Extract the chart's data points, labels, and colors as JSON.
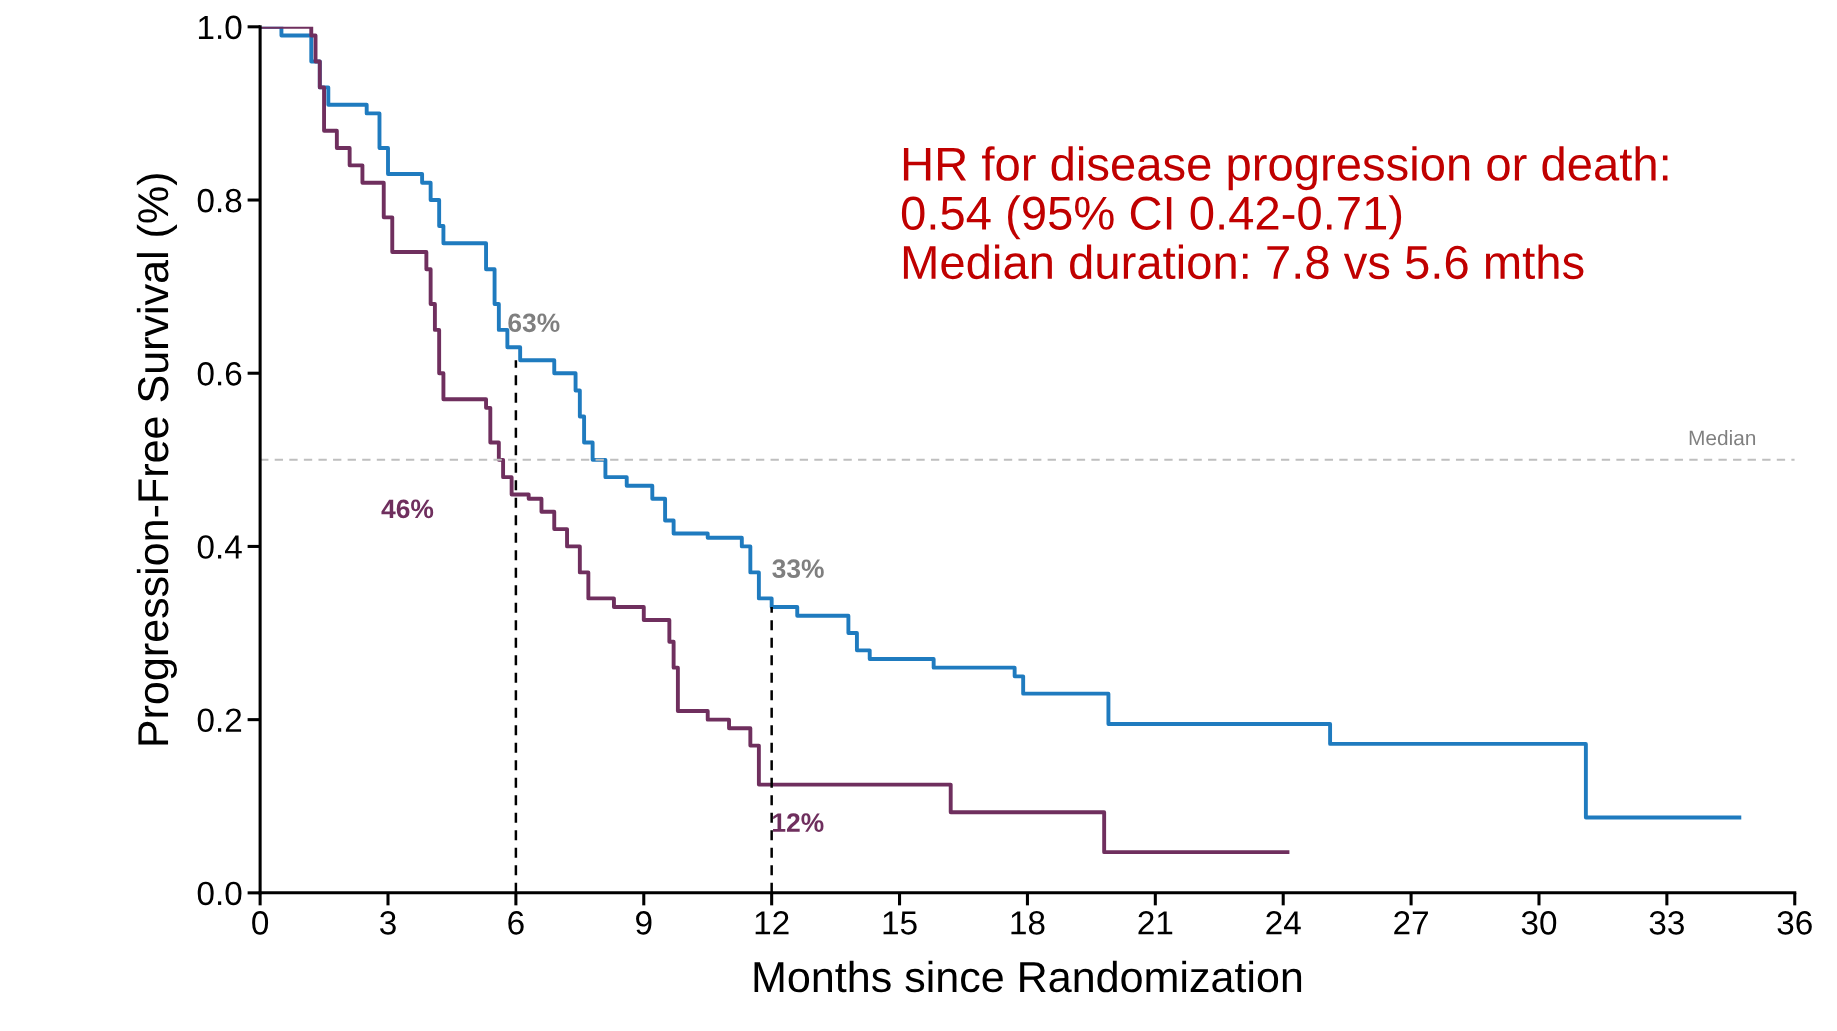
{
  "chart_data": {
    "type": "step",
    "xlabel": "Months since Randomization",
    "ylabel": "Progression-Free Survival (%)",
    "xlim": [
      0,
      36
    ],
    "xticks": [
      0,
      3,
      6,
      9,
      12,
      15,
      18,
      21,
      24,
      27,
      30,
      33,
      36
    ],
    "ylim": [
      0,
      1.0
    ],
    "yticks": [
      {
        "value": 0,
        "label": "0.0"
      },
      {
        "value": 0.2,
        "label": "0.2"
      },
      {
        "value": 0.4,
        "label": "0.4"
      },
      {
        "value": 0.6,
        "label": "0.6"
      },
      {
        "value": 0.8,
        "label": "0.8"
      },
      {
        "value": 1.0,
        "label": "1.0"
      }
    ],
    "grid": false,
    "legend": false,
    "series": [
      {
        "color": "#1f7bbf",
        "x": [
          0,
          0.5,
          1.2,
          1.4,
          1.6,
          2.5,
          2.8,
          3.0,
          3.8,
          4.0,
          4.2,
          4.3,
          5.3,
          5.5,
          5.6,
          5.8,
          6.1,
          6.9,
          7.4,
          7.5,
          7.6,
          7.8,
          8.1,
          8.6,
          9.2,
          9.5,
          9.7,
          10.5,
          11.3,
          11.5,
          11.7,
          12.0,
          12.6,
          13.8,
          14.0,
          14.3,
          15.8,
          17.7,
          17.9,
          19.9,
          25.1,
          31.1,
          34.7
        ],
        "values": [
          1.0,
          0.99,
          0.96,
          0.93,
          0.91,
          0.9,
          0.86,
          0.83,
          0.82,
          0.8,
          0.77,
          0.75,
          0.72,
          0.68,
          0.65,
          0.63,
          0.615,
          0.6,
          0.58,
          0.55,
          0.52,
          0.5,
          0.48,
          0.47,
          0.455,
          0.43,
          0.415,
          0.41,
          0.4,
          0.37,
          0.34,
          0.33,
          0.32,
          0.3,
          0.28,
          0.27,
          0.26,
          0.25,
          0.23,
          0.195,
          0.172,
          0.087,
          0.087
        ]
      },
      {
        "color": "#6f2f5e",
        "x": [
          0,
          1.2,
          1.3,
          1.4,
          1.5,
          1.8,
          2.1,
          2.4,
          2.9,
          3.1,
          3.9,
          4.0,
          4.1,
          4.2,
          4.3,
          5.3,
          5.4,
          5.6,
          5.7,
          5.9,
          6.3,
          6.6,
          6.9,
          7.2,
          7.5,
          7.7,
          8.3,
          9.0,
          9.6,
          9.7,
          9.8,
          10.5,
          11.0,
          11.5,
          11.7,
          16.2,
          19.8,
          24.1
        ],
        "values": [
          1.0,
          0.99,
          0.96,
          0.93,
          0.88,
          0.86,
          0.84,
          0.82,
          0.78,
          0.74,
          0.72,
          0.68,
          0.65,
          0.6,
          0.57,
          0.56,
          0.52,
          0.5,
          0.48,
          0.46,
          0.455,
          0.44,
          0.42,
          0.4,
          0.37,
          0.34,
          0.33,
          0.315,
          0.29,
          0.26,
          0.21,
          0.2,
          0.19,
          0.17,
          0.125,
          0.093,
          0.047,
          0.047
        ]
      },
      {
        "type": "line",
        "color": "#000000",
        "line_style": "dashed",
        "x": [
          6,
          6
        ],
        "values": [
          0,
          0.615
        ]
      },
      {
        "type": "line",
        "color": "#000000",
        "line_style": "dashed",
        "x": [
          12,
          12
        ],
        "values": [
          0,
          0.33
        ]
      }
    ],
    "ref_lines": [
      {
        "axis": "y",
        "value": 0.5,
        "label": "Median",
        "color": "#bfbfbf",
        "line_style": "dashed"
      }
    ],
    "annotations": [
      "HR for disease progression or death:\n0.54 (95% CI 0.42-0.71)\nMedian duration: 7.8 vs 5.6 mths",
      {
        "text": "63%",
        "x": 5.8,
        "y": 0.63
      },
      {
        "text": "46%",
        "x": 5.9,
        "y": 0.46
      },
      {
        "text": "33%",
        "x": 12.0,
        "y": 0.33
      },
      {
        "text": "12%",
        "x": 11.7,
        "y": 0.125
      }
    ]
  }
}
